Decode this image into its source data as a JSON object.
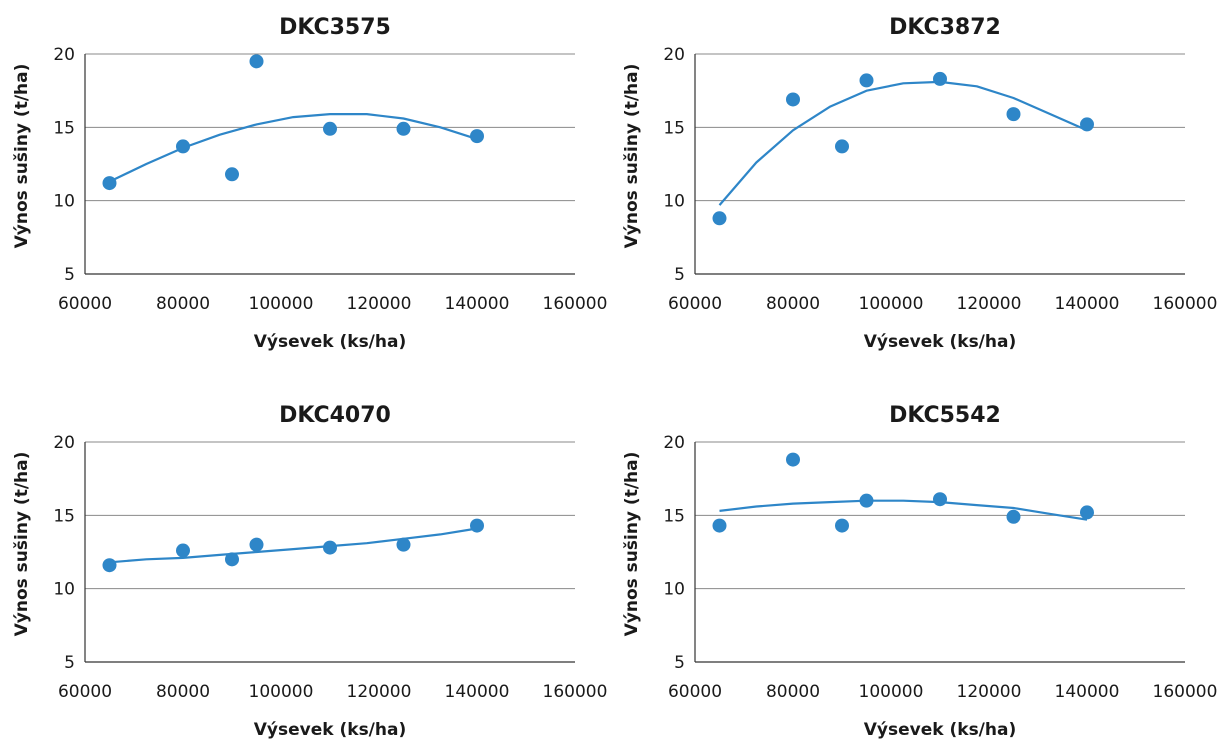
{
  "colors": {
    "series": "#2e86c8",
    "grid": "#8a8a8a",
    "axis": "#333333",
    "text": "#1a1a1a"
  },
  "chart_data": [
    {
      "type": "scatter",
      "title": "DKC3575",
      "xlabel": "Výsevek (ks/ha)",
      "ylabel": "Výnos sušiny (t/ha)",
      "xlim": [
        60000,
        160000
      ],
      "ylim": [
        5,
        20
      ],
      "xticks": [
        "60000",
        "80000",
        "100000",
        "120000",
        "140000",
        "160000"
      ],
      "yticks": [
        "5",
        "10",
        "15",
        "20"
      ],
      "grid": true,
      "points": {
        "x": [
          65000,
          80000,
          90000,
          95000,
          110000,
          125000,
          140000
        ],
        "y": [
          11.2,
          13.7,
          11.8,
          19.5,
          14.9,
          14.9,
          14.4
        ]
      },
      "trendline": {
        "type": "polynomial-2",
        "x": [
          65000,
          72500,
          80000,
          87500,
          95000,
          102500,
          110000,
          117500,
          125000,
          132500,
          140000
        ],
        "y": [
          11.3,
          12.5,
          13.6,
          14.5,
          15.2,
          15.7,
          15.9,
          15.9,
          15.6,
          15.0,
          14.2
        ]
      }
    },
    {
      "type": "scatter",
      "title": "DKC3872",
      "xlabel": "Výsevek (ks/ha)",
      "ylabel": "Výnos sušiny (t/ha)",
      "xlim": [
        60000,
        160000
      ],
      "ylim": [
        5,
        20
      ],
      "xticks": [
        "60000",
        "80000",
        "100000",
        "120000",
        "140000",
        "160000"
      ],
      "yticks": [
        "5",
        "10",
        "15",
        "20"
      ],
      "grid": true,
      "points": {
        "x": [
          65000,
          80000,
          90000,
          95000,
          110000,
          125000,
          140000
        ],
        "y": [
          8.8,
          16.9,
          13.7,
          18.2,
          18.3,
          15.9,
          15.2
        ]
      },
      "trendline": {
        "type": "polynomial-2",
        "x": [
          65000,
          72500,
          80000,
          87500,
          95000,
          102500,
          110000,
          117500,
          125000,
          132500,
          140000
        ],
        "y": [
          9.7,
          12.6,
          14.8,
          16.4,
          17.5,
          18.0,
          18.1,
          17.8,
          17.0,
          15.9,
          14.8
        ]
      }
    },
    {
      "type": "scatter",
      "title": "DKC4070",
      "xlabel": "Výsevek (ks/ha)",
      "ylabel": "Výnos sušiny (t/ha)",
      "xlim": [
        60000,
        160000
      ],
      "ylim": [
        5,
        20
      ],
      "xticks": [
        "60000",
        "80000",
        "100000",
        "120000",
        "140000",
        "160000"
      ],
      "yticks": [
        "5",
        "10",
        "15",
        "20"
      ],
      "grid": true,
      "points": {
        "x": [
          65000,
          80000,
          90000,
          95000,
          110000,
          125000,
          140000
        ],
        "y": [
          11.6,
          12.6,
          12.0,
          13.0,
          12.8,
          13.0,
          14.3
        ]
      },
      "trendline": {
        "type": "polynomial-2",
        "x": [
          65000,
          72500,
          80000,
          87500,
          95000,
          102500,
          110000,
          117500,
          125000,
          132500,
          140000
        ],
        "y": [
          11.8,
          12.0,
          12.1,
          12.3,
          12.5,
          12.7,
          12.9,
          13.1,
          13.4,
          13.7,
          14.1
        ]
      }
    },
    {
      "type": "scatter",
      "title": "DKC5542",
      "xlabel": "Výsevek (ks/ha)",
      "ylabel": "Výnos sušiny (t/ha)",
      "xlim": [
        60000,
        160000
      ],
      "ylim": [
        5,
        20
      ],
      "xticks": [
        "60000",
        "80000",
        "100000",
        "120000",
        "140000",
        "160000"
      ],
      "yticks": [
        "5",
        "10",
        "15",
        "20"
      ],
      "grid": true,
      "points": {
        "x": [
          65000,
          80000,
          90000,
          95000,
          110000,
          125000,
          140000
        ],
        "y": [
          14.3,
          18.8,
          14.3,
          16.0,
          16.1,
          14.9,
          15.2
        ]
      },
      "trendline": {
        "type": "polynomial-2",
        "x": [
          65000,
          72500,
          80000,
          87500,
          95000,
          102500,
          110000,
          117500,
          125000,
          132500,
          140000
        ],
        "y": [
          15.3,
          15.6,
          15.8,
          15.9,
          16.0,
          16.0,
          15.9,
          15.7,
          15.5,
          15.1,
          14.7
        ]
      }
    }
  ]
}
